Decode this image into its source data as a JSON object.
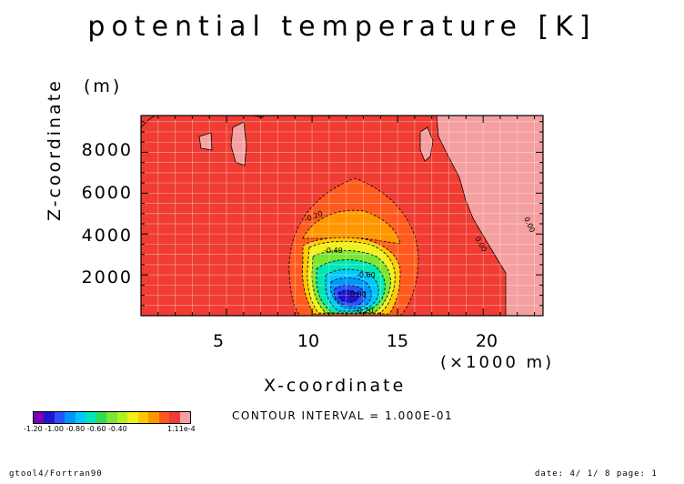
{
  "chart_data": {
    "type": "heatmap",
    "title": "potential temperature [K]",
    "xlabel": "X-coordinate",
    "xunit": "(×1000 m)",
    "ylabel": "Z-coordinate",
    "yunit": "(m)",
    "xlim": [
      0,
      23.5
    ],
    "ylim": [
      0,
      9800
    ],
    "x_ticks": [
      5,
      10,
      15,
      20
    ],
    "x_tick_labels": [
      "5",
      "10",
      "15",
      "20"
    ],
    "y_ticks": [
      2000,
      4000,
      6000,
      8000
    ],
    "y_tick_labels": [
      "2000",
      "4000",
      "6000",
      "8000"
    ],
    "grid": true,
    "contour_interval_text": "CONTOUR INTERVAL = 1.000E-01",
    "contour_labels": [
      "-0.20",
      "-0.40",
      "-0.60",
      "-0.80",
      "-0.20",
      "0.00",
      "0.00"
    ],
    "legend": {
      "colors": [
        "#7b00b4",
        "#1e14d2",
        "#2850ff",
        "#0096ff",
        "#00c8ff",
        "#00e6b4",
        "#32dc50",
        "#78e632",
        "#b4f01e",
        "#f0f01e",
        "#ffc800",
        "#ff9600",
        "#ff5a1e",
        "#f03c32",
        "#f5a0a0"
      ],
      "labels": [
        "-1.20",
        "-1.00",
        "-0.80",
        "-0.60",
        "-0.40",
        "1.11e-4"
      ],
      "overlap_text": "-1.20 -1.00 -0.80 -0.60 -0.40"
    }
  },
  "footer": {
    "left": "gtool4/Fortran90",
    "right": "date: 4/ 1/ 8 page: 1"
  }
}
